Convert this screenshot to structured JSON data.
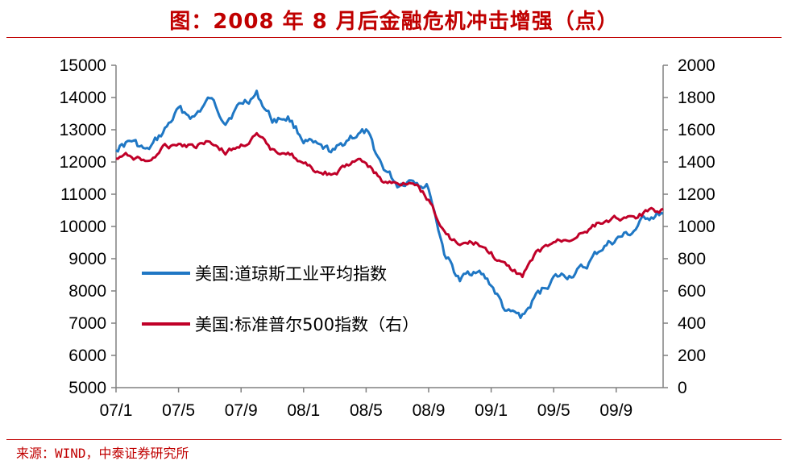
{
  "title": "图：2008 年 8 月后金融危机冲击增强（点）",
  "source": "来源：WIND，中泰证券研究所",
  "colors": {
    "dow": "#1f77c4",
    "sp": "#c00028",
    "accent": "#c00000"
  },
  "chart_data": {
    "type": "line",
    "x_ticks": [
      "07/1",
      "07/5",
      "07/9",
      "08/1",
      "08/5",
      "08/9",
      "09/1",
      "09/5",
      "09/9"
    ],
    "left_axis": {
      "ticks": [
        "15000",
        "14000",
        "13000",
        "12000",
        "11000",
        "10000",
        "9000",
        "8000",
        "7000",
        "6000",
        "5000"
      ],
      "range": [
        5000,
        15000
      ]
    },
    "right_axis": {
      "ticks": [
        "2000",
        "1800",
        "1600",
        "1400",
        "1200",
        "1000",
        "800",
        "600",
        "400",
        "200",
        "0"
      ],
      "range": [
        0,
        2000
      ]
    },
    "legend_position": "center-left",
    "series": [
      {
        "name": "美国:道琼斯工业平均指数",
        "axis": "left",
        "x": [
          "2007-01",
          "2007-02",
          "2007-03",
          "2007-04",
          "2007-05",
          "2007-06",
          "2007-07",
          "2007-08",
          "2007-09",
          "2007-10",
          "2007-11",
          "2007-12",
          "2008-01",
          "2008-02",
          "2008-03",
          "2008-04",
          "2008-05",
          "2008-06",
          "2008-07",
          "2008-08",
          "2008-09",
          "2008-10",
          "2008-11",
          "2008-12",
          "2009-01",
          "2009-02",
          "2009-03",
          "2009-04",
          "2009-05",
          "2009-06",
          "2009-07",
          "2009-08",
          "2009-09",
          "2009-10",
          "2009-11",
          "2009-12"
        ],
        "values": [
          12450,
          12650,
          12300,
          12900,
          13600,
          13400,
          13950,
          13300,
          13800,
          14100,
          13300,
          13400,
          12700,
          12400,
          12300,
          12800,
          12900,
          11900,
          11300,
          11500,
          11200,
          9200,
          8300,
          8700,
          8200,
          7300,
          7200,
          7900,
          8400,
          8500,
          8700,
          9300,
          9600,
          9800,
          10300,
          10400
        ]
      },
      {
        "name": "美国:标准普尔500指数（右）",
        "axis": "right",
        "x": [
          "2007-01",
          "2007-02",
          "2007-03",
          "2007-04",
          "2007-05",
          "2007-06",
          "2007-07",
          "2007-08",
          "2007-09",
          "2007-10",
          "2007-11",
          "2007-12",
          "2008-01",
          "2008-02",
          "2008-03",
          "2008-04",
          "2008-05",
          "2008-06",
          "2008-07",
          "2008-08",
          "2008-09",
          "2008-10",
          "2008-11",
          "2008-12",
          "2009-01",
          "2009-02",
          "2009-03",
          "2009-04",
          "2009-05",
          "2009-06",
          "2009-07",
          "2009-08",
          "2009-09",
          "2009-10",
          "2009-11",
          "2009-12"
        ],
        "values": [
          1420,
          1440,
          1400,
          1480,
          1520,
          1500,
          1540,
          1460,
          1500,
          1560,
          1470,
          1470,
          1380,
          1340,
          1320,
          1390,
          1400,
          1280,
          1260,
          1290,
          1170,
          960,
          880,
          900,
          830,
          740,
          700,
          840,
          900,
          920,
          980,
          1020,
          1060,
          1040,
          1090,
          1110
        ]
      }
    ]
  }
}
